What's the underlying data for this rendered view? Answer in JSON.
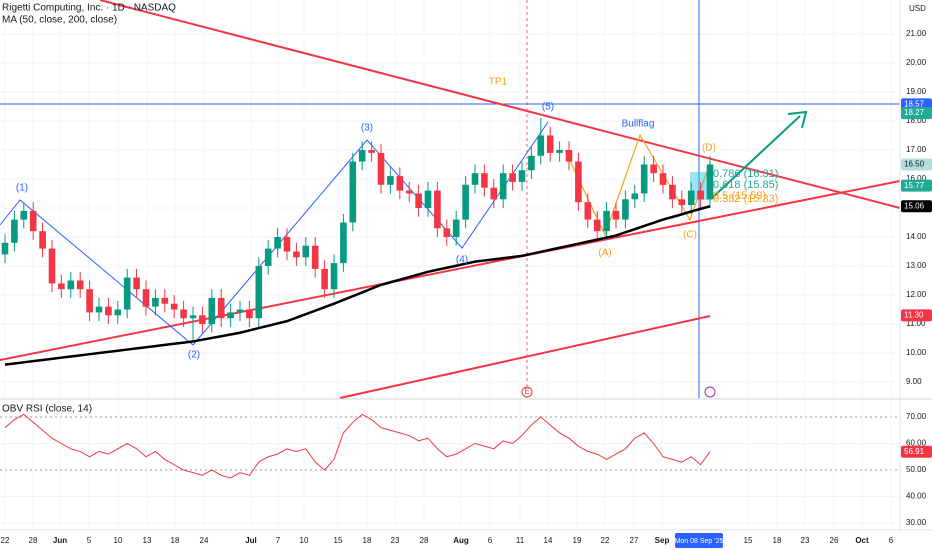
{
  "chart_data": [
    {
      "type": "candlestick",
      "title": "Rigetti Computing, Inc. · 1D · NASDAQ",
      "currency": "USD",
      "up_color": "#089981",
      "down_color": "#f23645",
      "open": [
        13.4,
        13.8,
        14.6,
        14.9,
        14.2,
        13.6,
        12.4,
        12.2,
        12.5,
        12.2,
        11.4,
        11.6,
        11.3,
        11.5,
        12.6,
        12.2,
        11.6,
        11.9,
        11.7,
        11.5,
        11.2,
        11.3,
        11.0,
        11.9,
        11.2,
        11.4,
        11.5,
        11.2,
        13.0,
        13.6,
        14.0,
        13.5,
        13.3,
        13.7,
        12.9,
        12.2,
        13.1,
        14.5,
        16.6,
        17.0,
        16.9,
        15.8,
        16.1,
        15.6,
        15.5,
        15.0,
        15.6,
        14.3,
        14.0,
        14.6,
        15.8,
        16.2,
        15.7,
        15.3,
        16.2,
        15.9,
        16.3,
        16.8,
        17.5,
        16.9,
        17.0,
        16.6,
        15.2,
        14.6,
        14.2,
        14.9,
        14.6,
        15.3,
        15.5,
        16.5,
        16.2,
        15.8,
        15.3,
        15.1,
        15.6,
        15.3
      ],
      "high": [
        14.1,
        14.9,
        15.2,
        15.2,
        14.5,
        13.9,
        12.7,
        12.8,
        12.8,
        12.5,
        11.9,
        11.9,
        11.8,
        12.9,
        12.9,
        12.5,
        12.2,
        12.2,
        12.0,
        11.8,
        11.6,
        11.6,
        12.2,
        12.2,
        11.7,
        11.8,
        11.8,
        13.3,
        13.9,
        14.3,
        14.3,
        13.8,
        14.0,
        14.0,
        13.2,
        13.4,
        14.8,
        16.9,
        17.3,
        17.3,
        17.2,
        16.4,
        16.4,
        15.9,
        15.8,
        15.9,
        15.9,
        14.6,
        14.9,
        16.1,
        16.5,
        16.5,
        16.0,
        16.5,
        16.5,
        16.6,
        17.1,
        18.1,
        17.8,
        17.3,
        17.3,
        16.9,
        15.5,
        14.9,
        15.2,
        15.2,
        15.6,
        15.8,
        16.8,
        16.8,
        16.5,
        16.1,
        15.6,
        15.9,
        15.9,
        16.8
      ],
      "low": [
        13.1,
        13.5,
        14.3,
        13.9,
        13.3,
        12.1,
        11.9,
        11.9,
        11.9,
        11.1,
        11.1,
        11.0,
        11.0,
        11.2,
        11.9,
        11.3,
        11.3,
        11.4,
        11.2,
        10.9,
        10.4,
        10.7,
        10.7,
        10.9,
        10.9,
        11.1,
        10.9,
        10.9,
        12.7,
        13.3,
        13.2,
        13.0,
        13.0,
        12.6,
        11.9,
        11.9,
        12.8,
        14.2,
        16.3,
        16.6,
        15.5,
        15.5,
        15.3,
        15.2,
        14.7,
        14.7,
        14.0,
        13.7,
        13.7,
        14.3,
        15.5,
        15.4,
        15.0,
        15.0,
        15.6,
        15.6,
        16.0,
        16.5,
        16.6,
        16.6,
        16.3,
        14.9,
        14.3,
        13.9,
        13.9,
        14.3,
        14.3,
        15.0,
        15.2,
        15.9,
        15.5,
        15.0,
        14.8,
        14.8,
        15.0,
        15.0
      ],
      "close": [
        13.8,
        14.6,
        14.9,
        14.2,
        13.6,
        12.4,
        12.2,
        12.5,
        12.2,
        11.4,
        11.6,
        11.3,
        11.5,
        12.6,
        12.2,
        11.6,
        11.9,
        11.7,
        11.5,
        11.2,
        11.3,
        11.0,
        11.9,
        11.2,
        11.4,
        11.5,
        11.2,
        13.0,
        13.6,
        14.0,
        13.5,
        13.3,
        13.7,
        12.9,
        12.2,
        13.1,
        14.5,
        16.6,
        17.0,
        16.9,
        15.8,
        16.1,
        15.6,
        15.5,
        15.0,
        15.6,
        14.3,
        14.0,
        14.6,
        15.8,
        16.2,
        15.7,
        15.3,
        16.2,
        15.9,
        16.3,
        16.8,
        17.5,
        16.9,
        17.0,
        16.6,
        15.2,
        14.6,
        14.2,
        14.9,
        14.6,
        15.3,
        15.5,
        16.5,
        16.2,
        15.8,
        15.3,
        15.1,
        15.6,
        15.3,
        16.5
      ],
      "overlay": {
        "name": "MA (50, close, 200, close)",
        "color": "#000000",
        "values": [
          9.6,
          9.64,
          9.68,
          9.72,
          9.76,
          9.8,
          9.84,
          9.88,
          9.92,
          9.96,
          10.0,
          10.04,
          10.08,
          10.12,
          10.16,
          10.2,
          10.24,
          10.28,
          10.32,
          10.36,
          10.4,
          10.46,
          10.52,
          10.58,
          10.64,
          10.7,
          10.78,
          10.86,
          10.94,
          11.02,
          11.1,
          11.22,
          11.34,
          11.46,
          11.58,
          11.7,
          11.83,
          11.96,
          12.09,
          12.22,
          12.35,
          12.44,
          12.53,
          12.62,
          12.71,
          12.8,
          12.87,
          12.94,
          13.01,
          13.08,
          13.15,
          13.19,
          13.23,
          13.27,
          13.31,
          13.35,
          13.42,
          13.49,
          13.56,
          13.63,
          13.7,
          13.77,
          13.84,
          13.91,
          13.98,
          14.05,
          14.16,
          14.27,
          14.38,
          14.49,
          14.6,
          14.69,
          14.78,
          14.88,
          14.97,
          15.06
        ]
      },
      "ylim": [
        8.45,
        22.17
      ],
      "yticks": [
        {
          "value": 9,
          "label": "9.00"
        },
        {
          "value": 10,
          "label": "10.00"
        },
        {
          "value": 11,
          "label": "11.00"
        },
        {
          "value": 12,
          "label": "12.00"
        },
        {
          "value": 13,
          "label": "13.00"
        },
        {
          "value": 14,
          "label": "14.00"
        },
        {
          "value": 15,
          "label": "15.00"
        },
        {
          "value": 16,
          "label": "16.00"
        },
        {
          "value": 17,
          "label": "17.00"
        },
        {
          "value": 18,
          "label": "18.00"
        },
        {
          "value": 19,
          "label": "19.00"
        },
        {
          "value": 20,
          "label": "20.00"
        },
        {
          "value": 21,
          "label": "21.00"
        }
      ],
      "price_labels": [
        {
          "value": 18.57,
          "color": "#2962ff"
        },
        {
          "value": 18.27,
          "color": "#22ab94"
        },
        {
          "value": {
            "value": 16.5,
            "label": "16.50"
          },
          "color": "#b2dfdb"
        },
        {
          "value": 15.77,
          "color": "#22ab94"
        },
        {
          "value": 15.06,
          "color": "#000000"
        },
        {
          "value": {
            "value": 11.3,
            "label": "11.30"
          },
          "color": "#f23645"
        }
      ],
      "annotations": [
        "(1)",
        "(2)",
        "(3)",
        "(4)",
        "(5)",
        "(A)",
        "(C)",
        "(D)",
        "TP1",
        "Bullflag",
        "0.786 (16.31)",
        "0.618 (15.85)",
        "0.5 (15.59)",
        "0.382 (15.33)"
      ],
      "earnings_marker": "E",
      "x_labels": [
        "22",
        "28",
        "Jun",
        "5",
        "10",
        "13",
        "18",
        "24",
        "Jul",
        "7",
        "10",
        "15",
        "18",
        "23",
        "28",
        "Aug",
        "6",
        "11",
        "14",
        "19",
        "22",
        "27",
        "Sep",
        "15",
        "18",
        "23",
        "26",
        "Oct",
        "6"
      ],
      "current_date": "Mon 08 Sep '25"
    },
    {
      "type": "line",
      "title": "OBV RSI (close, 14)",
      "color": "#f23645",
      "values": [
        66,
        69,
        71,
        68,
        65,
        62,
        60,
        58,
        57,
        55,
        57,
        56,
        58,
        60,
        58,
        55,
        57,
        54,
        52,
        50,
        49,
        48,
        50,
        48,
        47,
        49,
        48,
        53,
        55,
        56,
        58,
        57,
        58,
        53,
        50,
        54,
        64,
        68,
        71,
        69,
        66,
        65,
        64,
        63,
        61,
        62,
        58,
        55,
        56,
        58,
        60,
        59,
        58,
        61,
        60,
        63,
        67,
        70,
        67,
        64,
        62,
        59,
        57,
        56,
        54,
        56,
        58,
        62,
        64,
        60,
        55,
        54,
        53,
        55,
        52,
        56.91
      ],
      "ylim": [
        27.36,
        75.66
      ],
      "yticks": [
        {
          "value": 30,
          "label": "30.00"
        },
        {
          "value": 40,
          "label": "40.00"
        },
        {
          "value": 50,
          "label": "50.00"
        },
        {
          "value": 60,
          "label": "60.00"
        },
        {
          "value": 70,
          "label": "70.00"
        }
      ]
    }
  ]
}
